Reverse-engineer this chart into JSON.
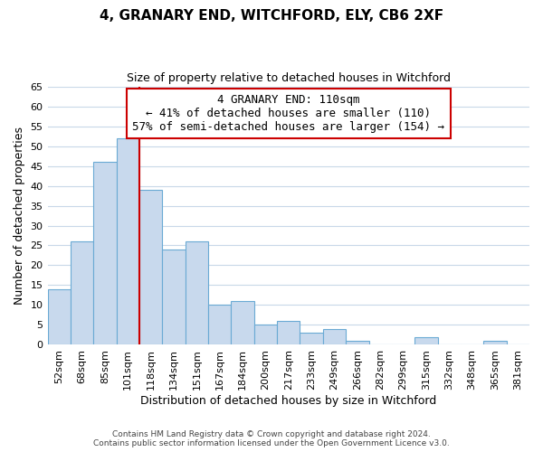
{
  "title": "4, GRANARY END, WITCHFORD, ELY, CB6 2XF",
  "subtitle": "Size of property relative to detached houses in Witchford",
  "xlabel": "Distribution of detached houses by size in Witchford",
  "ylabel": "Number of detached properties",
  "footer_line1": "Contains HM Land Registry data © Crown copyright and database right 2024.",
  "footer_line2": "Contains public sector information licensed under the Open Government Licence v3.0.",
  "categories": [
    "52sqm",
    "68sqm",
    "85sqm",
    "101sqm",
    "118sqm",
    "134sqm",
    "151sqm",
    "167sqm",
    "184sqm",
    "200sqm",
    "217sqm",
    "233sqm",
    "249sqm",
    "266sqm",
    "282sqm",
    "299sqm",
    "315sqm",
    "332sqm",
    "348sqm",
    "365sqm",
    "381sqm"
  ],
  "values": [
    14,
    26,
    46,
    52,
    39,
    24,
    26,
    10,
    11,
    5,
    6,
    3,
    4,
    1,
    0,
    0,
    2,
    0,
    0,
    1,
    0
  ],
  "bar_color": "#c8d9ed",
  "bar_edge_color": "#6aaad4",
  "vline_x_index": 3.5,
  "vline_color": "#cc0000",
  "annotation_line0": "4 GRANARY END: 110sqm",
  "annotation_line1": "← 41% of detached houses are smaller (110)",
  "annotation_line2": "57% of semi-detached houses are larger (154) →",
  "annotation_box_edgecolor": "#cc0000",
  "ylim": [
    0,
    65
  ],
  "yticks": [
    0,
    5,
    10,
    15,
    20,
    25,
    30,
    35,
    40,
    45,
    50,
    55,
    60,
    65
  ],
  "background_color": "#ffffff",
  "grid_color": "#c8d8e8"
}
